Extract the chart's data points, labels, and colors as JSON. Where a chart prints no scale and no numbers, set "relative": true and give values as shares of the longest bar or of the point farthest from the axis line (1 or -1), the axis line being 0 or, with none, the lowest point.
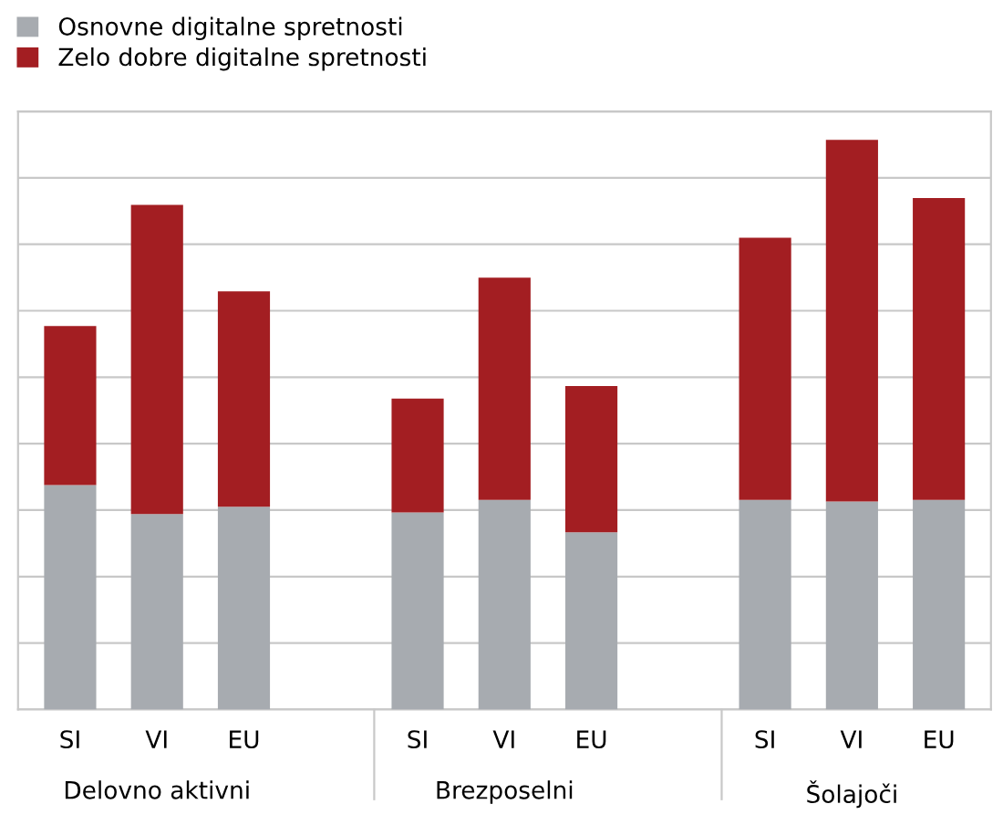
{
  "chart_data": {
    "type": "bar",
    "stacked": true,
    "relative": true,
    "grid": "y",
    "legend": "top left",
    "categories": [
      "SI",
      "VI",
      "EU",
      null,
      "SI",
      "VI",
      "EU",
      null,
      "SI",
      "VI",
      "EU"
    ],
    "series": [
      {
        "name": "Osnovne digitalne spretnosti",
        "color": "#a7abb0",
        "values": [
          0.394,
          0.343,
          0.356,
          null,
          0.346,
          0.368,
          0.311,
          null,
          0.368,
          0.365,
          0.368
        ]
      },
      {
        "name": "Zelo dobre digitalne spretnosti",
        "color": "#a31e22",
        "values": [
          0.279,
          0.543,
          0.378,
          null,
          0.2,
          0.39,
          0.257,
          null,
          0.46,
          0.635,
          0.53
        ]
      }
    ],
    "annotations": [
      "Delovno aktivni",
      "Brezposelni",
      "Šolajoči"
    ]
  }
}
